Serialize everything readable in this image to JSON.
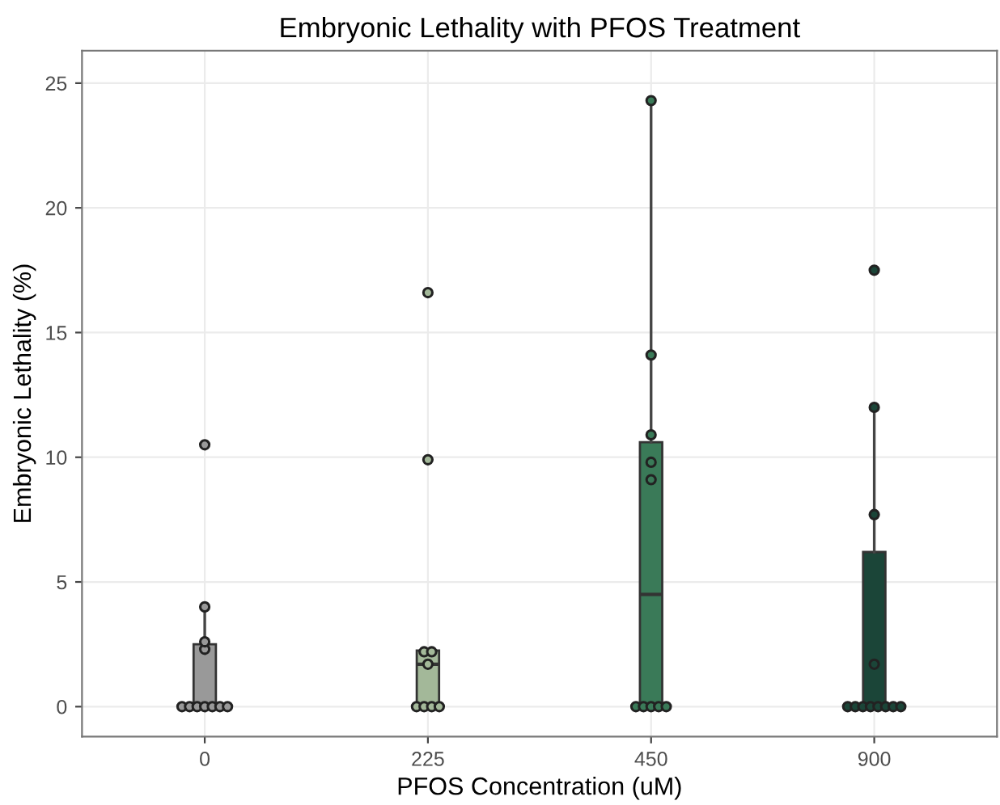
{
  "chart_data": {
    "type": "box",
    "title": "Embryonic Lethality with PFOS Treatment",
    "xlabel": "PFOS Concentration (uM)",
    "ylabel": "Embryonic Lethality (%)",
    "categories": [
      "0",
      "225",
      "450",
      "900"
    ],
    "ylim": [
      -1.2,
      26.3
    ],
    "yticks": [
      0,
      5,
      10,
      15,
      20,
      25
    ],
    "grid": true,
    "marker": "circle",
    "colors": [
      "#999999",
      "#a3b899",
      "#3a7a58",
      "#1b4538"
    ],
    "boxes": [
      {
        "low": 0,
        "q1": 0,
        "median": 0,
        "q3": 2.5,
        "high": 4.0,
        "outliers": [
          10.5
        ]
      },
      {
        "low": 0,
        "q1": 0,
        "median": 1.7,
        "q3": 2.25,
        "high": 2.25,
        "outliers": [
          9.9,
          16.6
        ]
      },
      {
        "low": 0,
        "q1": 0,
        "median": 4.5,
        "q3": 10.6,
        "high": 24.3
      },
      {
        "low": 0,
        "q1": 0,
        "median": 0,
        "q3": 6.2,
        "high": 12.0,
        "outliers": [
          17.5
        ]
      }
    ],
    "series": [
      {
        "type": "scatter",
        "color": "#999999",
        "x": [
          "0",
          "0",
          "0",
          "0",
          "0",
          "0",
          "0",
          "0",
          "0",
          "0"
        ],
        "values": [
          0,
          0,
          0,
          0,
          0,
          0,
          0,
          2.3,
          2.6,
          4.0
        ]
      },
      {
        "type": "scatter",
        "color": "#a3b899",
        "x": [
          "225",
          "225",
          "225",
          "225",
          "225",
          "225",
          "225"
        ],
        "values": [
          0,
          0,
          0,
          0,
          1.7,
          2.2,
          2.2
        ]
      },
      {
        "type": "scatter",
        "color": "#3a7a58",
        "x": [
          "450",
          "450",
          "450",
          "450",
          "450",
          "450",
          "450",
          "450",
          "450",
          "450"
        ],
        "values": [
          0,
          0,
          0,
          0,
          0,
          9.1,
          9.8,
          10.9,
          14.1,
          24.3
        ]
      },
      {
        "type": "scatter",
        "color": "#1b4538",
        "x": [
          "900",
          "900",
          "900",
          "900",
          "900",
          "900",
          "900",
          "900",
          "900",
          "900",
          "900"
        ],
        "values": [
          0,
          0,
          0,
          0,
          0,
          0,
          0,
          0,
          1.7,
          7.7,
          12.0
        ]
      }
    ]
  }
}
